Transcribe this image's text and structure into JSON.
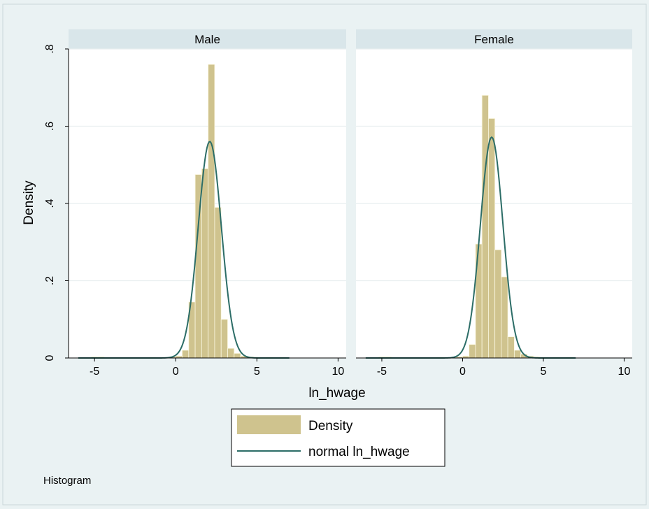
{
  "chart_data": {
    "type": "bar",
    "subtype": "histogram-by-group",
    "xlabel": "ln_hwage",
    "ylabel": "Density",
    "xlim": [
      -6.6,
      10.5
    ],
    "ylim": [
      0,
      0.8
    ],
    "xticks": [
      -5,
      0,
      5,
      10
    ],
    "yticks": [
      0,
      0.2,
      0.4,
      0.6,
      0.8
    ],
    "ytick_labels": [
      "0",
      ".2",
      ".4",
      ".6",
      ".8"
    ],
    "grid": true,
    "bin_width": 0.4,
    "colors": {
      "bar": "#cfc38e",
      "bar_edge": "#fbf7e0",
      "curve": "#2c6d67",
      "background": "#eaf2f3",
      "plot_bg": "#ffffff",
      "strip": "#d9e6ea"
    },
    "panels": [
      {
        "title": "Male",
        "normal": {
          "mean": 2.1,
          "sd": 0.712
        },
        "bins": [
          {
            "x0": -5.2,
            "density": 0.003
          },
          {
            "x0": -4.8,
            "density": 0.003
          },
          {
            "x0": -1.6,
            "density": 0.002
          },
          {
            "x0": -0.4,
            "density": 0.003
          },
          {
            "x0": 0.0,
            "density": 0.005
          },
          {
            "x0": 0.4,
            "density": 0.02
          },
          {
            "x0": 0.8,
            "density": 0.145
          },
          {
            "x0": 1.2,
            "density": 0.475
          },
          {
            "x0": 1.6,
            "density": 0.49
          },
          {
            "x0": 2.0,
            "density": 0.76
          },
          {
            "x0": 2.4,
            "density": 0.39
          },
          {
            "x0": 2.8,
            "density": 0.1
          },
          {
            "x0": 3.2,
            "density": 0.025
          },
          {
            "x0": 3.6,
            "density": 0.012
          },
          {
            "x0": 4.0,
            "density": 0.005
          },
          {
            "x0": 4.4,
            "density": 0.003
          },
          {
            "x0": 4.8,
            "density": 0.002
          },
          {
            "x0": 5.6,
            "density": 0.002
          },
          {
            "x0": 6.4,
            "density": 0.002
          }
        ]
      },
      {
        "title": "Female",
        "normal": {
          "mean": 1.8,
          "sd": 0.698
        },
        "bins": [
          {
            "x0": -5.2,
            "density": 0.003
          },
          {
            "x0": -4.8,
            "density": 0.003
          },
          {
            "x0": -1.6,
            "density": 0.002
          },
          {
            "x0": -0.4,
            "density": 0.003
          },
          {
            "x0": 0.0,
            "density": 0.005
          },
          {
            "x0": 0.4,
            "density": 0.035
          },
          {
            "x0": 0.8,
            "density": 0.295
          },
          {
            "x0": 1.2,
            "density": 0.68
          },
          {
            "x0": 1.6,
            "density": 0.62
          },
          {
            "x0": 2.0,
            "density": 0.28
          },
          {
            "x0": 2.4,
            "density": 0.21
          },
          {
            "x0": 2.8,
            "density": 0.055
          },
          {
            "x0": 3.2,
            "density": 0.02
          },
          {
            "x0": 3.6,
            "density": 0.01
          },
          {
            "x0": 4.0,
            "density": 0.005
          },
          {
            "x0": 4.4,
            "density": 0.003
          },
          {
            "x0": 4.8,
            "density": 0.002
          },
          {
            "x0": 5.6,
            "density": 0.002
          },
          {
            "x0": 6.4,
            "density": 0.002
          }
        ]
      }
    ],
    "legend": {
      "position": "bottom-center",
      "entries": [
        "Density",
        "normal ln_hwage"
      ]
    },
    "note": "Histogram"
  }
}
